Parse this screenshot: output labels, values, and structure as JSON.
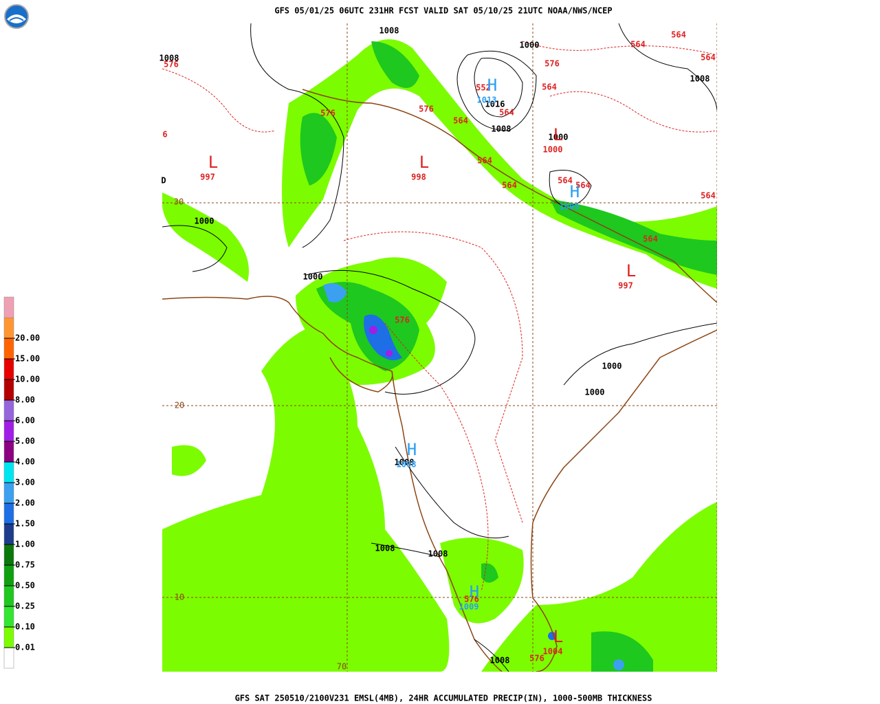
{
  "header": {
    "title": "GFS 05/01/25 06UTC 231HR FCST VALID SAT 05/10/25 21UTC NOAA/NWS/NCEP"
  },
  "footer": {
    "caption": "GFS SAT 250510/2100V231 EMSL(4MB), 24HR ACCUMULATED PRECIP(IN), 1000-500MB THICKNESS"
  },
  "legend": {
    "labels": [
      "0.01",
      "0.10",
      "0.25",
      "0.50",
      "0.75",
      "1.00",
      "1.50",
      "2.00",
      "3.00",
      "4.00",
      "5.00",
      "6.00",
      "8.00",
      "10.00",
      "15.00",
      "20.00"
    ],
    "colors": [
      "#ffffff",
      "#7cfc00",
      "#32e632",
      "#1ec81e",
      "#0fa00f",
      "#0a780a",
      "#1e3c8c",
      "#1e6ee6",
      "#3ca0f0",
      "#00e6f0",
      "#8c0082",
      "#a01ee6",
      "#9664dc",
      "#b40000",
      "#e60000",
      "#ff6400",
      "#ff9632",
      "#f0a0b4"
    ]
  },
  "map": {
    "pressure_labels": [
      "1008",
      "1000",
      "1008",
      "1008",
      "1016",
      "1008",
      "1000",
      "1000",
      "1000",
      "1000",
      "1008",
      "1008",
      "1008",
      "1008",
      "1000",
      "D"
    ],
    "thickness_labels": [
      "576",
      "576",
      "576",
      "576",
      "564",
      "564",
      "564",
      "564",
      "564",
      "564",
      "564",
      "564",
      "564",
      "564",
      "564",
      "564",
      "552",
      "576",
      "576",
      "576",
      "6"
    ],
    "centers": [
      {
        "symbol": "L",
        "value": "997"
      },
      {
        "symbol": "L",
        "value": "998"
      },
      {
        "symbol": "L",
        "value": "997"
      },
      {
        "symbol": "L",
        "value": "1000"
      },
      {
        "symbol": "H",
        "value": "1013"
      },
      {
        "symbol": "H",
        "value": "1009"
      },
      {
        "symbol": "H",
        "value": "1008"
      },
      {
        "symbol": "H",
        "value": "1009"
      },
      {
        "symbol": "L",
        "value": "1004"
      }
    ],
    "grid_labels": [
      "30",
      "20",
      "10",
      "70"
    ]
  }
}
